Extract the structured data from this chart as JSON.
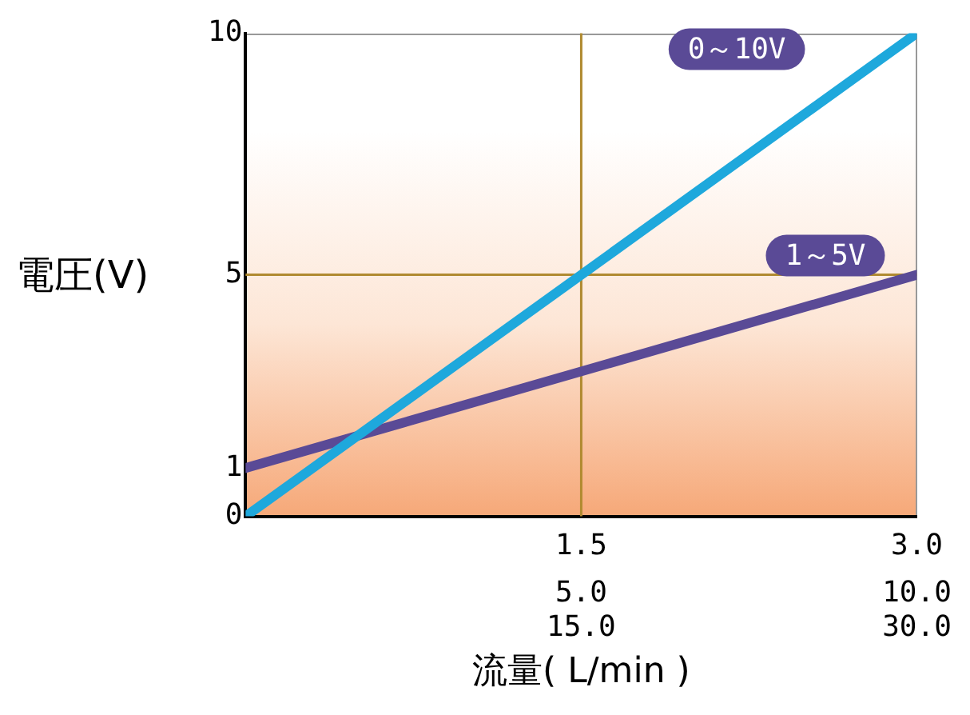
{
  "chart_data": {
    "type": "line",
    "xlabel": "流量( L/min )",
    "ylabel": "電圧(V)",
    "xlim": [
      0,
      3
    ],
    "xticks": [
      {
        "value": 1.5,
        "label": "1.5"
      },
      {
        "value": 3,
        "label": "3.0"
      }
    ],
    "x2lim": [
      0,
      10
    ],
    "x2ticks": [
      {
        "value": 5,
        "label": "5.0"
      },
      {
        "value": 10,
        "label": "10.0"
      }
    ],
    "annotations": [
      "15.0",
      "30.0"
    ],
    "ylim": [
      0,
      10
    ],
    "yticks": [
      0,
      1,
      5,
      10
    ],
    "x": [
      0,
      3
    ],
    "series": [
      {
        "name": "0～10V",
        "color": "#1ea8dc",
        "values": [
          0,
          10
        ]
      },
      {
        "name": "1～5V",
        "color": "#5a4a96",
        "values": [
          1,
          5
        ]
      }
    ],
    "ref_lines": [
      {
        "axis": "x",
        "value": 1.5,
        "color": "#b08a30"
      },
      {
        "axis": "y",
        "value": 5,
        "color": "#b08a30"
      }
    ],
    "grid": false,
    "legend": false,
    "marker": "none",
    "line_style": "solid"
  }
}
